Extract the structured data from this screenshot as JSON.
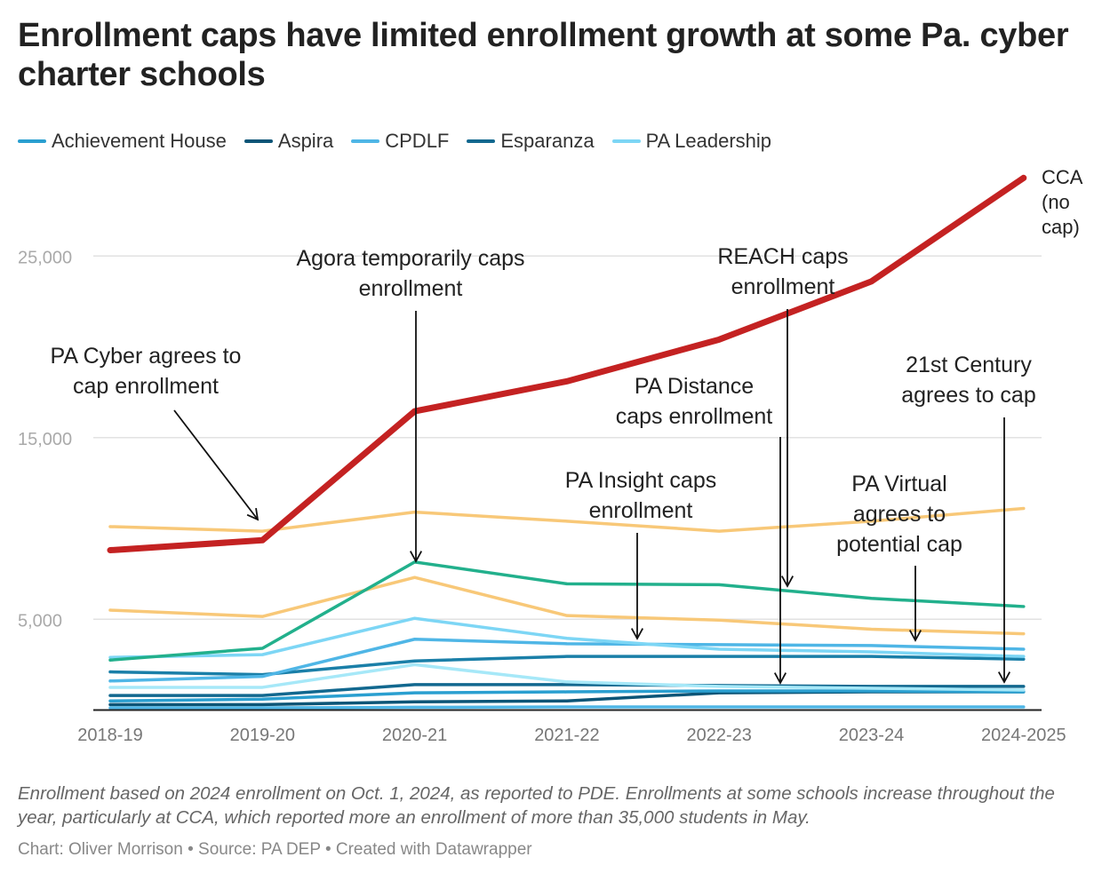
{
  "title": "Enrollment caps have limited enrollment growth at some Pa. cyber charter schools",
  "legend": [
    {
      "label": "Achievement House",
      "color": "#2a9fd0"
    },
    {
      "label": "Aspira",
      "color": "#0c5577"
    },
    {
      "label": "CPDLF",
      "color": "#4fb6e6"
    },
    {
      "label": "Esparanza",
      "color": "#12688f"
    },
    {
      "label": "PA Leadership",
      "color": "#7dd6f5"
    }
  ],
  "notes": "Enrollment based on 2024 enrollment on Oct. 1, 2024, as reported to PDE. Enrollments at some schools increase throughout the year, particularly at CCA, which reported more an enrollment of more than 35,000 students in May.",
  "byline": "Chart: Oliver Morrison • Source: PA DEP • Created with Datawrapper",
  "chart_data": {
    "type": "line",
    "categories": [
      "2018-19",
      "2019-20",
      "2020-21",
      "2021-22",
      "2022-23",
      "2023-24",
      "2024-2025"
    ],
    "ylim": [
      0,
      30000
    ],
    "yticks": [
      {
        "v": 5000,
        "label": "5,000"
      },
      {
        "v": 15000,
        "label": "15,000"
      },
      {
        "v": 25000,
        "label": "25,000"
      }
    ],
    "grid": true,
    "legend_position": "top-left",
    "series": [
      {
        "name": "CCA (no cap)",
        "label_lines": [
          "CCA",
          "(no",
          "cap)"
        ],
        "color": "#c42222",
        "width": 7,
        "values": [
          8800,
          9350,
          16450,
          18100,
          20400,
          23600,
          29300
        ]
      },
      {
        "color": "#f8c878",
        "values": [
          10100,
          9850,
          10900,
          10400,
          9850,
          10400,
          11100
        ]
      },
      {
        "color": "#22b08c",
        "values": [
          2750,
          3400,
          8150,
          6950,
          6900,
          6150,
          5700
        ]
      },
      {
        "color": "#f8c878",
        "values": [
          5500,
          5150,
          7300,
          5200,
          4950,
          4450,
          4200
        ]
      },
      {
        "color": "#7dd6f5",
        "values": [
          2900,
          3050,
          5050,
          3950,
          3350,
          3200,
          2950
        ]
      },
      {
        "color": "#4fb6e6",
        "values": [
          1600,
          1850,
          3900,
          3650,
          3600,
          3550,
          3350
        ]
      },
      {
        "color": "#1a7fa8",
        "values": [
          2100,
          1950,
          2700,
          2950,
          2950,
          2950,
          2800
        ]
      },
      {
        "color": "#a6e8f8",
        "values": [
          1250,
          1250,
          2500,
          1550,
          1300,
          1200,
          1100
        ]
      },
      {
        "color": "#12688f",
        "values": [
          800,
          800,
          1400,
          1400,
          1350,
          1300,
          1300
        ]
      },
      {
        "color": "#2a9fd0",
        "values": [
          500,
          600,
          950,
          1000,
          1050,
          1050,
          1000
        ]
      },
      {
        "color": "#0c5577",
        "values": [
          300,
          300,
          450,
          500,
          950,
          1000,
          1000
        ]
      },
      {
        "color": "#4fb6e6",
        "values": [
          120,
          120,
          150,
          170,
          170,
          170,
          170
        ]
      }
    ],
    "annotations": [
      {
        "lines": [
          "PA Cyber agrees to",
          "cap enrollment"
        ]
      },
      {
        "lines": [
          "Agora temporarily caps",
          "enrollment"
        ]
      },
      {
        "lines": [
          "PA Insight caps",
          "enrollment"
        ]
      },
      {
        "lines": [
          "REACH caps",
          "enrollment"
        ]
      },
      {
        "lines": [
          "PA Distance",
          "caps enrollment"
        ]
      },
      {
        "lines": [
          "PA Virtual",
          "agrees to",
          "potential cap"
        ]
      },
      {
        "lines": [
          "21st Century",
          "agrees to cap"
        ]
      }
    ]
  }
}
